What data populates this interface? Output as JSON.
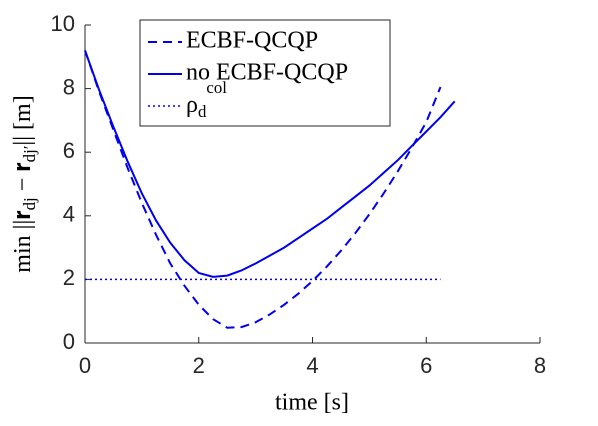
{
  "chart_data": {
    "type": "line",
    "xlabel": "time [s]",
    "ylabel": "min ||𝐫_{dj} − 𝐫_{dj′}|| [m]",
    "xlim": [
      0,
      8
    ],
    "xticks": [
      0,
      2,
      4,
      6,
      8
    ],
    "ylim": [
      0,
      10
    ],
    "yticks": [
      0,
      2,
      4,
      6,
      8,
      10
    ],
    "legend": "upper-left",
    "series": [
      {
        "name": "ECBF-QCQP",
        "color": "#0000ee",
        "style": "dashed",
        "x": [
          0,
          0.25,
          0.5,
          0.75,
          1.0,
          1.25,
          1.5,
          1.75,
          2.0,
          2.25,
          2.5,
          2.75,
          3.0,
          3.25,
          3.5,
          3.75,
          4.0,
          4.25,
          4.5,
          4.75,
          5.0,
          5.25,
          5.5,
          5.75,
          6.0,
          6.25
        ],
        "values": [
          9.2,
          7.9,
          6.7,
          5.5,
          4.4,
          3.4,
          2.5,
          1.8,
          1.2,
          0.75,
          0.48,
          0.5,
          0.65,
          0.9,
          1.2,
          1.55,
          1.95,
          2.4,
          2.9,
          3.45,
          4.05,
          4.7,
          5.4,
          6.15,
          6.95,
          8.05
        ]
      },
      {
        "name": "no ECBF-QCQP",
        "color": "#0000ee",
        "style": "solid",
        "x": [
          0,
          0.25,
          0.5,
          0.75,
          1.0,
          1.25,
          1.5,
          1.75,
          2.0,
          2.25,
          2.5,
          2.75,
          3.0,
          3.25,
          3.5,
          3.75,
          4.0,
          4.25,
          4.5,
          4.75,
          5.0,
          5.25,
          5.5,
          5.75,
          6.0,
          6.25,
          6.5
        ],
        "values": [
          9.2,
          7.95,
          6.8,
          5.7,
          4.7,
          3.85,
          3.15,
          2.6,
          2.2,
          2.08,
          2.12,
          2.28,
          2.5,
          2.75,
          3.0,
          3.3,
          3.6,
          3.9,
          4.25,
          4.6,
          4.95,
          5.35,
          5.75,
          6.2,
          6.65,
          7.1,
          7.6
        ]
      },
      {
        "name": "ρ_{d}^{col}",
        "color": "#0000ee",
        "style": "dotted",
        "x": [
          0,
          6.25
        ],
        "values": [
          2,
          2
        ]
      }
    ]
  }
}
